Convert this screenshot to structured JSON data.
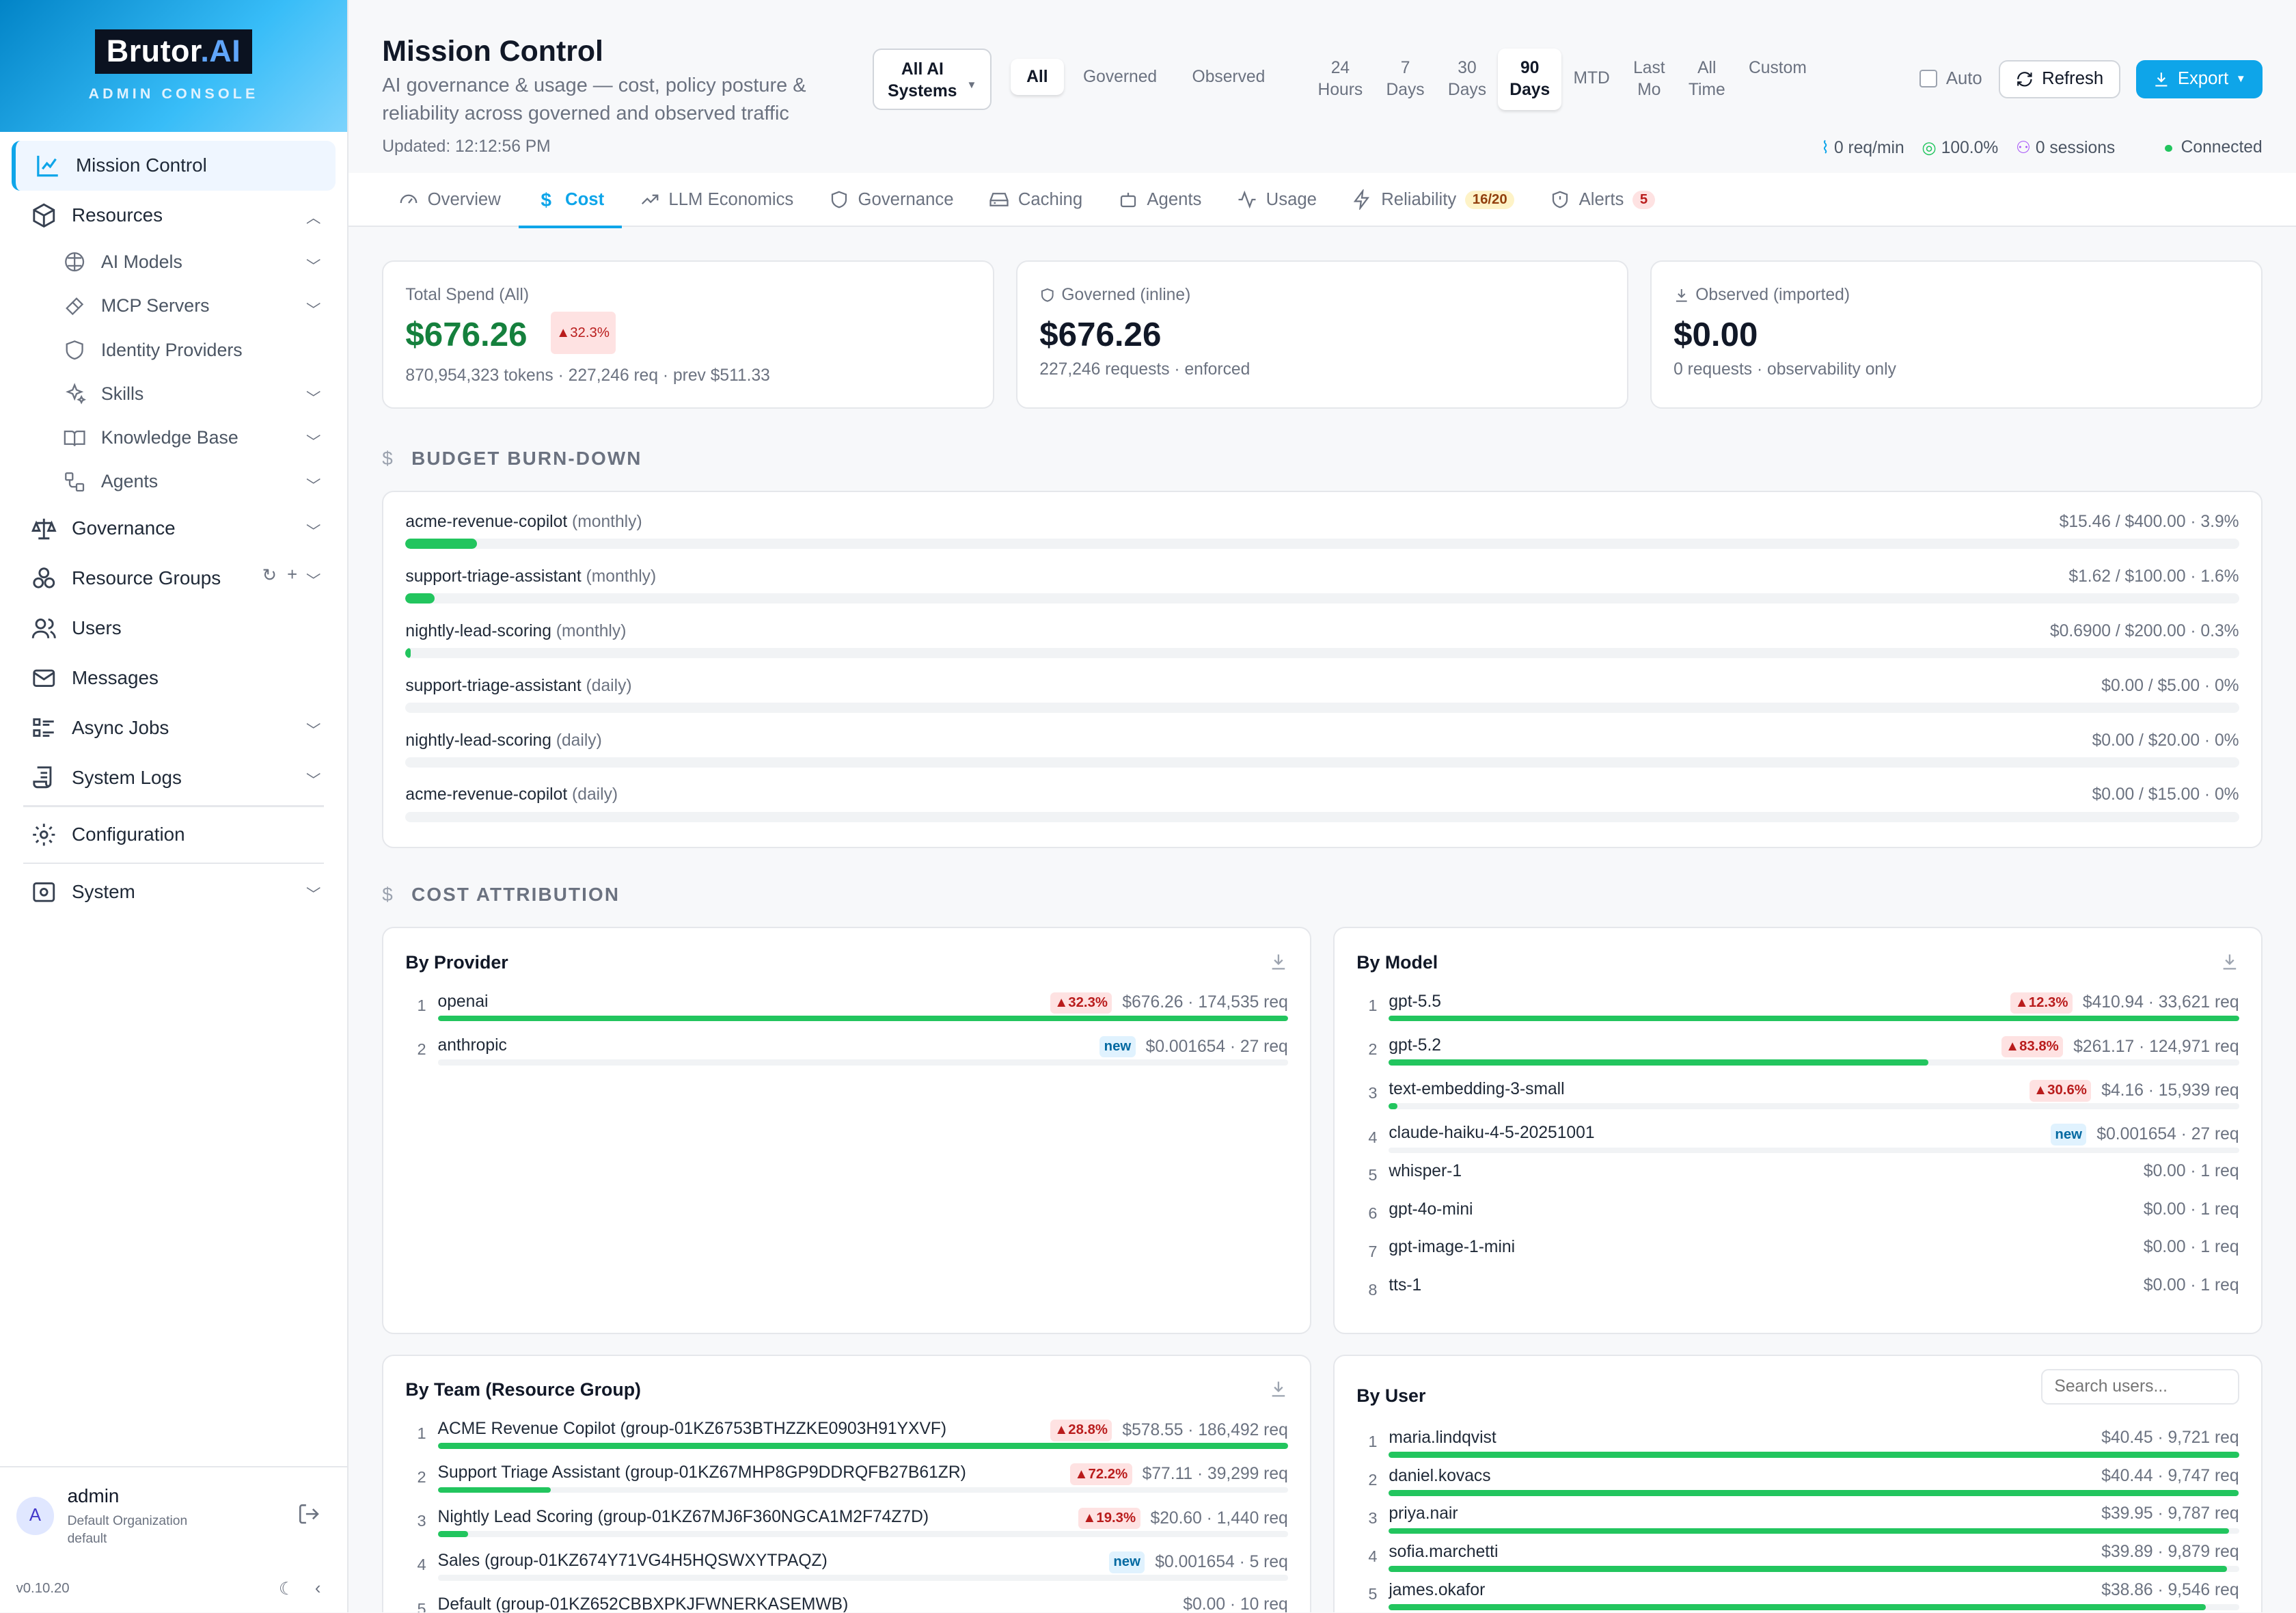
{
  "brand": {
    "name": "Brutor",
    "name_accent": ".AI",
    "sub": "ADMIN CONSOLE"
  },
  "sidebar": {
    "items": [
      {
        "label": "Mission Control",
        "icon": "chart-line-icon"
      },
      {
        "label": "Resources",
        "icon": "cube-icon"
      },
      {
        "label": "AI Models",
        "icon": "brain-icon"
      },
      {
        "label": "MCP Servers",
        "icon": "plug-icon"
      },
      {
        "label": "Identity Providers",
        "icon": "shield-icon"
      },
      {
        "label": "Skills",
        "icon": "sparkles-icon"
      },
      {
        "label": "Knowledge Base",
        "icon": "book-icon"
      },
      {
        "label": "Agents",
        "icon": "workflow-icon"
      },
      {
        "label": "Governance",
        "icon": "scale-icon"
      },
      {
        "label": "Resource Groups",
        "icon": "boxes-icon"
      },
      {
        "label": "Users",
        "icon": "users-icon"
      },
      {
        "label": "Messages",
        "icon": "mail-icon"
      },
      {
        "label": "Async Jobs",
        "icon": "list-icon"
      },
      {
        "label": "System Logs",
        "icon": "scroll-icon"
      },
      {
        "label": "Configuration",
        "icon": "gear-icon"
      },
      {
        "label": "System",
        "icon": "server-icon"
      }
    ]
  },
  "user": {
    "initial": "A",
    "name": "admin",
    "org": "Default Organization",
    "role": "default"
  },
  "version": "v0.10.20",
  "header": {
    "title": "Mission Control",
    "subtitle": "AI governance & usage — cost, policy posture & reliability across governed and observed traffic",
    "updated": "Updated: 12:12:56 PM",
    "systems_dd": "All AI Systems",
    "segments": [
      "All",
      "Governed",
      "Observed"
    ],
    "ranges": [
      [
        "24",
        "Hours"
      ],
      [
        "7",
        "Days"
      ],
      [
        "30",
        "Days"
      ],
      [
        "90",
        "Days"
      ],
      [
        "MTD",
        ""
      ],
      [
        "Last",
        "Mo"
      ],
      [
        "All",
        "Time"
      ],
      [
        "Custom",
        ""
      ]
    ],
    "auto": "Auto",
    "refresh": "Refresh",
    "export": "Export",
    "stats": {
      "rate": "0 req/min",
      "success": "100.0%",
      "sessions": "0 sessions",
      "connection": "Connected"
    }
  },
  "tabs": [
    {
      "label": "Overview",
      "icon": "gauge-icon"
    },
    {
      "label": "Cost",
      "icon": "dollar-icon"
    },
    {
      "label": "LLM Economics",
      "icon": "trend-icon"
    },
    {
      "label": "Governance",
      "icon": "shield-icon"
    },
    {
      "label": "Caching",
      "icon": "drive-icon"
    },
    {
      "label": "Agents",
      "icon": "bot-icon"
    },
    {
      "label": "Usage",
      "icon": "activity-icon"
    },
    {
      "label": "Reliability",
      "icon": "bolt-icon",
      "badge": "16/20"
    },
    {
      "label": "Alerts",
      "icon": "shield-alert-icon",
      "badge": "5"
    }
  ],
  "kpis": [
    {
      "label": "Total Spend (All)",
      "value": "$676.26",
      "delta": "▲32.3%",
      "sub": "870,954,323 tokens · 227,246 req · prev $511.33"
    },
    {
      "label": "Governed (inline)",
      "value": "$676.26",
      "sub": "227,246 requests · enforced"
    },
    {
      "label": "Observed (imported)",
      "value": "$0.00",
      "sub": "0 requests · observability only"
    }
  ],
  "budget": {
    "title": "BUDGET BURN-DOWN",
    "rows": [
      {
        "name": "acme-revenue-copilot",
        "period": "(monthly)",
        "value": "$15.46 / $400.00 · 3.9%",
        "pct": 3.9
      },
      {
        "name": "support-triage-assistant",
        "period": "(monthly)",
        "value": "$1.62 / $100.00 · 1.6%",
        "pct": 1.6
      },
      {
        "name": "nightly-lead-scoring",
        "period": "(monthly)",
        "value": "$0.6900 / $200.00 · 0.3%",
        "pct": 0.3
      },
      {
        "name": "support-triage-assistant",
        "period": "(daily)",
        "value": "$0.00 / $5.00 · 0%",
        "pct": 0
      },
      {
        "name": "nightly-lead-scoring",
        "period": "(daily)",
        "value": "$0.00 / $20.00 · 0%",
        "pct": 0
      },
      {
        "name": "acme-revenue-copilot",
        "period": "(daily)",
        "value": "$0.00 / $15.00 · 0%",
        "pct": 0
      }
    ]
  },
  "attribution": {
    "title": "COST ATTRIBUTION",
    "by_provider": {
      "title": "By Provider",
      "rows": [
        {
          "name": "openai",
          "delta": "▲32.3%",
          "value": "$676.26 · 174,535 req",
          "pct": 100
        },
        {
          "name": "anthropic",
          "new": "new",
          "value": "$0.001654 · 27 req",
          "pct": 0
        }
      ]
    },
    "by_model": {
      "title": "By Model",
      "rows": [
        {
          "name": "gpt-5.5",
          "delta": "▲12.3%",
          "value": "$410.94 · 33,621 req",
          "pct": 100
        },
        {
          "name": "gpt-5.2",
          "delta": "▲83.8%",
          "value": "$261.17 · 124,971 req",
          "pct": 63.5
        },
        {
          "name": "text-embedding-3-small",
          "delta": "▲30.6%",
          "value": "$4.16 · 15,939 req",
          "pct": 1
        },
        {
          "name": "claude-haiku-4-5-20251001",
          "new": "new",
          "value": "$0.001654 · 27 req",
          "pct": 0
        },
        {
          "name": "whisper-1",
          "value": "$0.00 · 1 req",
          "pct": 0
        },
        {
          "name": "gpt-4o-mini",
          "value": "$0.00 · 1 req",
          "pct": 0
        },
        {
          "name": "gpt-image-1-mini",
          "value": "$0.00 · 1 req",
          "pct": 0
        },
        {
          "name": "tts-1",
          "value": "$0.00 · 1 req",
          "pct": 0
        }
      ]
    },
    "by_team": {
      "title": "By Team (Resource Group)",
      "rows": [
        {
          "name": "ACME Revenue Copilot (group-01KZ6753BTHZZKE0903H91YXVF)",
          "delta": "▲28.8%",
          "value": "$578.55 · 186,492 req",
          "pct": 100
        },
        {
          "name": "Support Triage Assistant (group-01KZ67MHP8GP9DDRQFB27B61ZR)",
          "delta": "▲72.2%",
          "value": "$77.11 · 39,299 req",
          "pct": 13.3
        },
        {
          "name": "Nightly Lead Scoring (group-01KZ67MJ6F360NGCA1M2F74Z7D)",
          "delta": "▲19.3%",
          "value": "$20.60 · 1,440 req",
          "pct": 3.6
        },
        {
          "name": "Sales (group-01KZ674Y71VG4H5HQSWXYTPAQZ)",
          "new": "new",
          "value": "$0.001654 · 5 req",
          "pct": 0
        },
        {
          "name": "Default (group-01KZ652CBBXPKJFWNERKASEMWB)",
          "value": "$0.00 · 10 req",
          "pct": 0
        }
      ]
    },
    "by_user": {
      "title": "By User",
      "search_placeholder": "Search users...",
      "rows": [
        {
          "name": "maria.lindqvist",
          "value": "$40.45 · 9,721 req",
          "pct": 100
        },
        {
          "name": "daniel.kovacs",
          "value": "$40.44 · 9,747 req",
          "pct": 99.98
        },
        {
          "name": "priya.nair",
          "value": "$39.95 · 9,787 req",
          "pct": 98.8
        },
        {
          "name": "sofia.marchetti",
          "value": "$39.89 · 9,879 req",
          "pct": 98.6
        },
        {
          "name": "james.okafor",
          "value": "$38.86 · 9,546 req",
          "pct": 96.1
        }
      ]
    }
  },
  "colors": {
    "accent": "#0ea5e9",
    "positive": "#15803d",
    "bar": "#22c55e",
    "delta_up_bg": "#fee2e2",
    "delta_up_fg": "#b91c1c"
  }
}
